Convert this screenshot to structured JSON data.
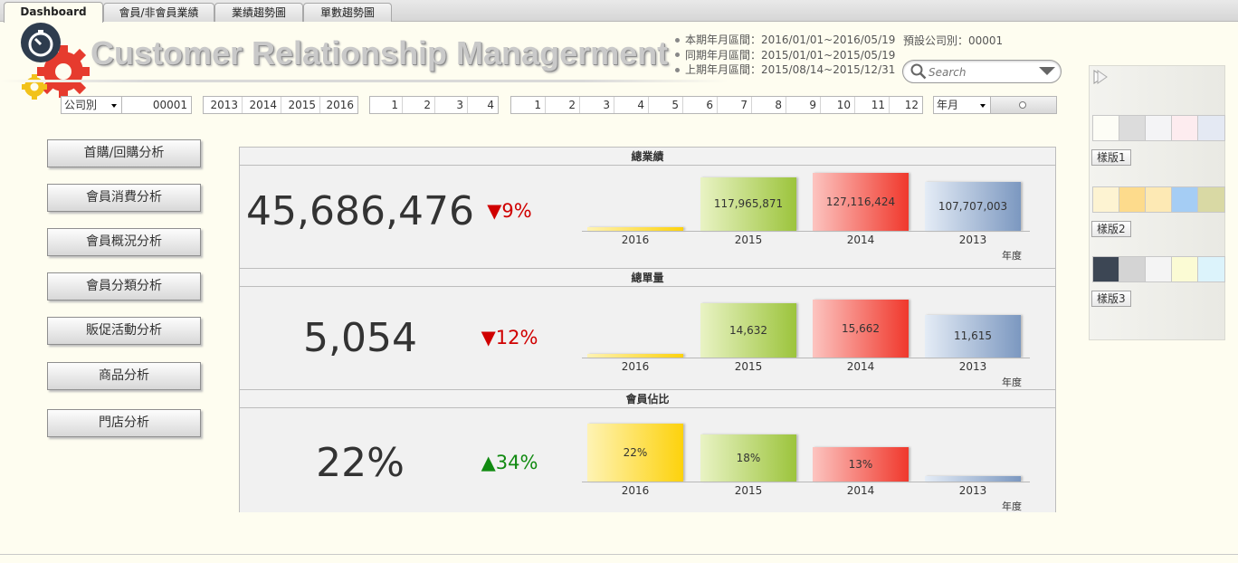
{
  "tabs": [
    {
      "label": "Dashboard"
    },
    {
      "label": "會員/非會員業績"
    },
    {
      "label": "業績趨勢圖"
    },
    {
      "label": "單數趨勢圖"
    }
  ],
  "header": {
    "title": "Customer Relationship Managerment",
    "period_current": "本期年月區間：2016/01/01~2016/05/19",
    "period_same": "同期年月區間：2015/01/01~2015/05/19",
    "period_previous": "上期年月區間：2015/08/14~2015/12/31",
    "default_company": "預設公司別：00001"
  },
  "search": {
    "placeholder": "Search"
  },
  "filters": {
    "company_dim": "公司別",
    "company_value": "00001",
    "years": [
      "2013",
      "2014",
      "2015",
      "2016"
    ],
    "quarters": [
      "1",
      "2",
      "3",
      "4"
    ],
    "months": [
      "1",
      "2",
      "3",
      "4",
      "5",
      "6",
      "7",
      "8",
      "9",
      "10",
      "11",
      "12"
    ],
    "time_unit": "年月"
  },
  "nav": [
    {
      "label": "首購/回購分析"
    },
    {
      "label": "會員消費分析"
    },
    {
      "label": "會員概況分析"
    },
    {
      "label": "會員分類分析"
    },
    {
      "label": "販促活動分析"
    },
    {
      "label": "商品分析"
    },
    {
      "label": "門店分析"
    }
  ],
  "themes": {
    "items": [
      {
        "label": "樣版1",
        "colors": [
          "#fdfdf6",
          "#dcdcdc",
          "#f4f4f6",
          "#fdecef",
          "#e4e9f3"
        ]
      },
      {
        "label": "樣版2",
        "colors": [
          "#fdf3d2",
          "#fddb8c",
          "#fde9b4",
          "#a5cdf4",
          "#d9d9a4"
        ]
      },
      {
        "label": "樣版3",
        "colors": [
          "#3c4654",
          "#d4d4d4",
          "#f4f4f4",
          "#fbfbd4",
          "#dcf3fb"
        ]
      }
    ]
  },
  "colors": {
    "bar_2016": [
      "#fef3b4",
      "#fdd20c"
    ],
    "bar_2015": [
      "#e9f3c4",
      "#9cc43c"
    ],
    "bar_2014": [
      "#fcc4c0",
      "#f0382c"
    ],
    "bar_2013": [
      "#e4ecf6",
      "#7c98c0"
    ],
    "down": "#d00000",
    "up": "#118a11"
  },
  "chart_data": [
    {
      "type": "bar",
      "title": "總業績",
      "kpi_value": "45,686,476",
      "kpi_change": "▼9%",
      "kpi_direction": "down",
      "categories": [
        "2016",
        "2015",
        "2014",
        "2013"
      ],
      "values": [
        5400000,
        117965871,
        127116424,
        107707003
      ],
      "labels": [
        "",
        "117,965,871",
        "127,116,424",
        "107,707,003"
      ],
      "xlabel": "年度"
    },
    {
      "type": "bar",
      "title": "總單量",
      "kpi_value": "5,054",
      "kpi_change": "▼12%",
      "kpi_direction": "down",
      "categories": [
        "2016",
        "2015",
        "2014",
        "2013"
      ],
      "values": [
        600,
        14632,
        15662,
        11615
      ],
      "labels": [
        "",
        "14,632",
        "15,662",
        "11,615"
      ],
      "xlabel": "年度"
    },
    {
      "type": "bar",
      "title": "會員佔比",
      "kpi_value": "22%",
      "kpi_change": "▲34%",
      "kpi_direction": "up",
      "categories": [
        "2016",
        "2015",
        "2014",
        "2013"
      ],
      "values": [
        22,
        18,
        13,
        2
      ],
      "labels": [
        "22%",
        "18%",
        "13%",
        ""
      ],
      "xlabel": "年度"
    }
  ]
}
